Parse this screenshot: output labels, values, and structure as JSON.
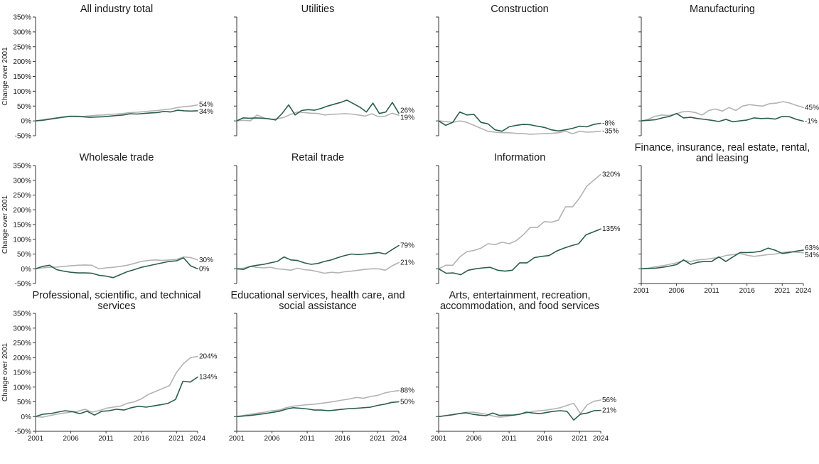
{
  "chart_data": {
    "type": "line",
    "y_axis_label": "Change over 2001",
    "y_ticks": [
      "350%",
      "300%",
      "250%",
      "200%",
      "150%",
      "100%",
      "50%",
      "0%",
      "-50%"
    ],
    "ylim": [
      -50,
      350
    ],
    "x_ticks": [
      "2001",
      "2006",
      "2011",
      "2016",
      "2021",
      "2024"
    ],
    "xlim": [
      2001,
      2024
    ],
    "colors": {
      "dark": "#2b5e4b",
      "light": "#b3b3b3"
    },
    "panels": [
      {
        "title": "All industry total",
        "dark": {
          "end_label": "34%",
          "values": [
            0,
            2,
            5,
            9,
            12,
            15,
            15,
            14,
            12,
            13,
            14,
            16,
            18,
            20,
            24,
            23,
            25,
            27,
            28,
            32,
            30,
            36,
            34,
            33,
            34
          ]
        },
        "light": {
          "end_label": "54%",
          "values": [
            0,
            4,
            7,
            10,
            13,
            16,
            16,
            15,
            17,
            19,
            20,
            22,
            23,
            25,
            28,
            29,
            31,
            33,
            35,
            38,
            40,
            45,
            48,
            50,
            54
          ]
        }
      },
      {
        "title": "Utilities",
        "dark": {
          "end_label": "26%",
          "values": [
            0,
            10,
            9,
            10,
            9,
            7,
            3,
            25,
            54,
            20,
            35,
            38,
            36,
            42,
            50,
            56,
            62,
            70,
            58,
            46,
            30,
            60,
            25,
            30,
            62,
            26
          ]
        },
        "light": {
          "end_label": "19%",
          "values": [
            0,
            2,
            0,
            20,
            10,
            5,
            7,
            12,
            22,
            30,
            28,
            26,
            25,
            20,
            22,
            23,
            24,
            23,
            20,
            16,
            24,
            14,
            16,
            26,
            19
          ]
        }
      },
      {
        "title": "Construction",
        "dark": {
          "end_label": "-8%",
          "values": [
            0,
            -15,
            -5,
            30,
            20,
            22,
            -5,
            -10,
            -30,
            -35,
            -20,
            -15,
            -12,
            -13,
            -18,
            -22,
            -30,
            -34,
            -30,
            -25,
            -18,
            -20,
            -12,
            -8
          ]
        },
        "light": {
          "end_label": "-35%",
          "values": [
            0,
            -2,
            -5,
            0,
            -5,
            -15,
            -25,
            -35,
            -38,
            -40,
            -40,
            -42,
            -43,
            -45,
            -44,
            -43,
            -42,
            -40,
            -35,
            -43,
            -35,
            -38,
            -37,
            -35
          ]
        }
      },
      {
        "title": "Manufacturing",
        "dark": {
          "end_label": "-1%",
          "values": [
            0,
            2,
            4,
            10,
            15,
            25,
            10,
            12,
            8,
            5,
            2,
            -2,
            5,
            -3,
            0,
            3,
            10,
            8,
            9,
            6,
            15,
            14,
            5,
            -1
          ]
        },
        "light": {
          "end_label": "45%",
          "values": [
            0,
            5,
            15,
            20,
            18,
            22,
            30,
            32,
            28,
            20,
            35,
            40,
            33,
            45,
            35,
            50,
            55,
            52,
            50,
            58,
            60,
            65,
            60,
            52,
            45
          ]
        }
      },
      {
        "title": "Wholesale trade",
        "dark": {
          "end_label": "0%",
          "values": [
            0,
            8,
            12,
            -3,
            -8,
            -12,
            -14,
            -14,
            -15,
            -22,
            -25,
            -30,
            -20,
            -10,
            -3,
            5,
            10,
            15,
            20,
            25,
            27,
            37,
            10,
            0
          ]
        },
        "light": {
          "end_label": "30%",
          "values": [
            0,
            3,
            5,
            6,
            8,
            10,
            12,
            13,
            12,
            0,
            3,
            5,
            8,
            12,
            18,
            25,
            28,
            30,
            28,
            30,
            32,
            40,
            38,
            30
          ]
        }
      },
      {
        "title": "Retail trade",
        "dark": {
          "end_label": "79%",
          "values": [
            0,
            -2,
            8,
            12,
            15,
            20,
            25,
            40,
            30,
            28,
            20,
            15,
            18,
            25,
            30,
            38,
            45,
            50,
            48,
            50,
            52,
            55,
            50,
            65,
            79
          ]
        },
        "light": {
          "end_label": "21%",
          "values": [
            0,
            2,
            8,
            5,
            3,
            5,
            0,
            -2,
            -5,
            2,
            -3,
            -5,
            -10,
            -15,
            -12,
            -14,
            -10,
            -8,
            -5,
            -2,
            0,
            0,
            -5,
            10,
            21
          ]
        }
      },
      {
        "title": "Information",
        "dark": {
          "end_label": "135%",
          "values": [
            0,
            -15,
            -14,
            -20,
            -5,
            0,
            3,
            5,
            -5,
            -8,
            -5,
            20,
            20,
            38,
            42,
            45,
            60,
            70,
            78,
            85,
            115,
            125,
            135
          ]
        },
        "light": {
          "end_label": "320%",
          "values": [
            0,
            12,
            12,
            40,
            58,
            62,
            70,
            85,
            82,
            90,
            85,
            95,
            115,
            140,
            140,
            160,
            158,
            165,
            210,
            210,
            240,
            280,
            300,
            320
          ]
        }
      },
      {
        "title": "Finance, insurance, real estate, rental, and leasing",
        "dark": {
          "end_label": "63%",
          "values": [
            0,
            1,
            2,
            5,
            9,
            14,
            30,
            15,
            22,
            25,
            25,
            40,
            25,
            40,
            55,
            55,
            56,
            60,
            70,
            63,
            52,
            55,
            60,
            63
          ]
        },
        "light": {
          "end_label": "54%",
          "values": [
            0,
            2,
            7,
            10,
            15,
            20,
            28,
            25,
            30,
            32,
            35,
            38,
            45,
            48,
            52,
            46,
            42,
            45,
            48,
            50,
            55,
            58,
            56,
            54
          ]
        }
      },
      {
        "title": "Professional, scientific, and technical services",
        "dark": {
          "end_label": "134%",
          "values": [
            0,
            8,
            10,
            15,
            20,
            17,
            10,
            18,
            5,
            18,
            20,
            25,
            22,
            30,
            35,
            32,
            36,
            40,
            45,
            58,
            120,
            117,
            134
          ]
        },
        "light": {
          "end_label": "204%",
          "values": [
            0,
            -2,
            3,
            8,
            12,
            15,
            18,
            25,
            15,
            20,
            28,
            32,
            35,
            45,
            50,
            60,
            75,
            85,
            95,
            105,
            150,
            180,
            200,
            204
          ]
        }
      },
      {
        "title": "Educational services, health care, and social assistance",
        "dark": {
          "end_label": "50%",
          "values": [
            0,
            2,
            4,
            7,
            10,
            14,
            18,
            25,
            30,
            28,
            26,
            22,
            22,
            20,
            22,
            25,
            27,
            28,
            30,
            32,
            38,
            42,
            48,
            50
          ]
        },
        "light": {
          "end_label": "88%",
          "values": [
            0,
            4,
            8,
            12,
            15,
            20,
            22,
            30,
            35,
            38,
            40,
            42,
            45,
            48,
            52,
            56,
            60,
            65,
            62,
            68,
            72,
            80,
            85,
            88
          ]
        }
      },
      {
        "title": "Arts, entertainment, recreation, accommodation, and food services",
        "dark": {
          "end_label": "21%",
          "values": [
            0,
            3,
            6,
            10,
            13,
            8,
            5,
            3,
            12,
            4,
            5,
            5,
            8,
            15,
            12,
            10,
            14,
            18,
            20,
            18,
            -12,
            8,
            12,
            20,
            21
          ]
        },
        "light": {
          "end_label": "56%",
          "values": [
            0,
            3,
            7,
            10,
            14,
            15,
            12,
            8,
            2,
            -2,
            0,
            4,
            8,
            12,
            18,
            20,
            22,
            26,
            30,
            38,
            45,
            10,
            40,
            52,
            56
          ]
        }
      }
    ]
  }
}
